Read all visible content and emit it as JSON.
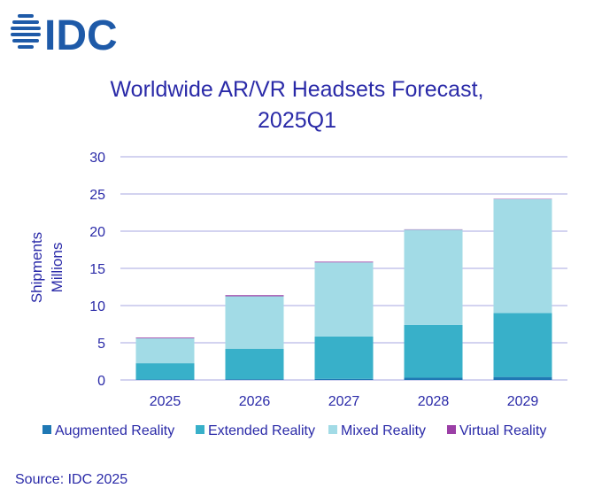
{
  "logo": {
    "text": "IDC",
    "color": "#1e5aa8"
  },
  "chart_data": {
    "type": "bar",
    "stacked": true,
    "title_line1": "Worldwide AR/VR Headsets Forecast,",
    "title_line2": "2025Q1",
    "ylabel_line1": "Shipments",
    "ylabel_line2": "Millions",
    "xlabel": "",
    "categories": [
      "2025",
      "2026",
      "2027",
      "2028",
      "2029"
    ],
    "ylim": [
      0,
      30
    ],
    "yticks": [
      0,
      5,
      10,
      15,
      20,
      25,
      30
    ],
    "grid": true,
    "legend_position": "bottom",
    "series": [
      {
        "name": "Augmented Reality",
        "color": "#1f78b4",
        "values": [
          0.05,
          0.1,
          0.15,
          0.3,
          0.4
        ]
      },
      {
        "name": "Extended Reality",
        "color": "#38b0c9",
        "values": [
          2.2,
          4.1,
          5.7,
          7.1,
          8.6
        ]
      },
      {
        "name": "Mixed Reality",
        "color": "#a2dbe6",
        "values": [
          3.35,
          7.05,
          9.95,
          12.8,
          15.3
        ]
      },
      {
        "name": "Virtual Reality",
        "color": "#9b3fa6",
        "values": [
          0.1,
          0.15,
          0.1,
          0.05,
          0.05
        ]
      }
    ]
  },
  "source": "Source: IDC 2025"
}
